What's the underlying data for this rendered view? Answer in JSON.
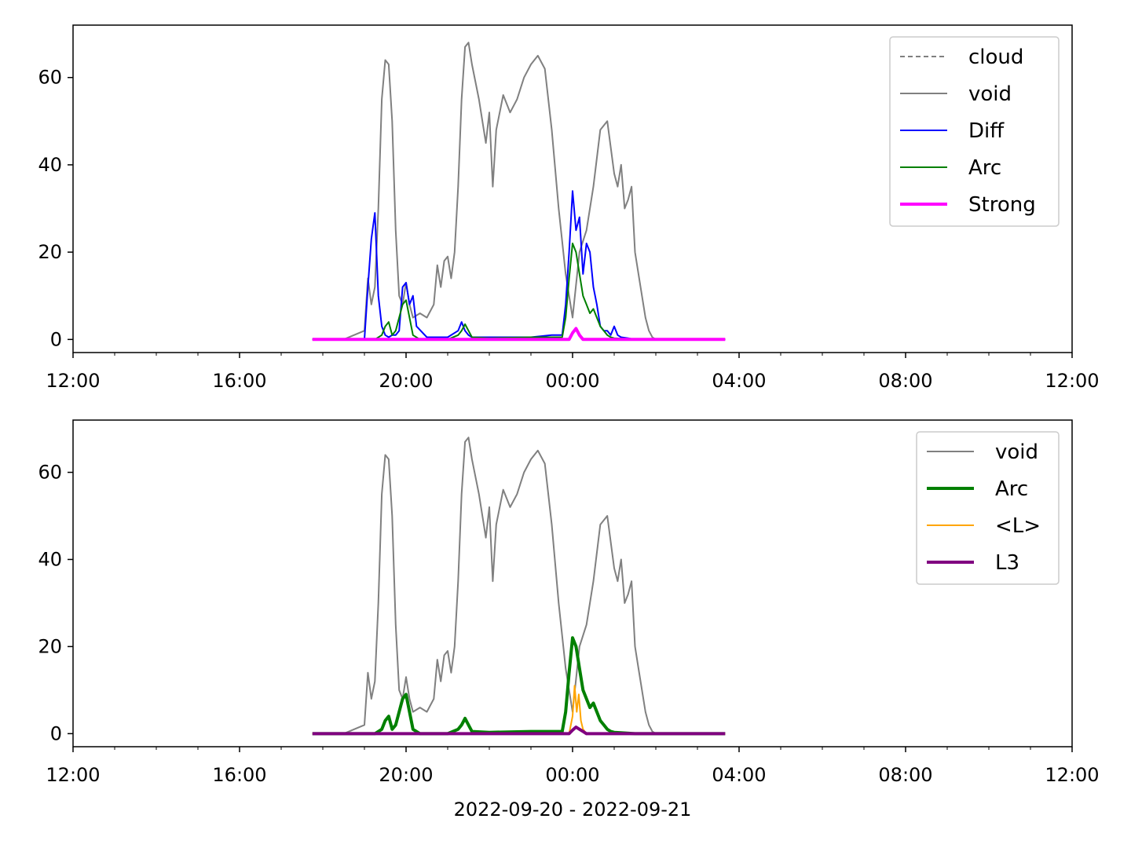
{
  "chart_data": [
    {
      "type": "line",
      "xlim": [
        "2022-09-20 12:00",
        "2022-09-21 12:00"
      ],
      "ylim": [
        -3,
        72
      ],
      "x_ticks": [
        "12:00",
        "16:00",
        "20:00",
        "00:00",
        "04:00",
        "08:00",
        "12:00"
      ],
      "y_ticks": [
        0,
        20,
        40,
        60
      ],
      "legend": {
        "placement": "top-right",
        "entries": [
          "cloud",
          "void",
          "Diff",
          "Arc",
          "Strong"
        ]
      },
      "series": [
        {
          "name": "cloud",
          "color": "#808080",
          "style": "dashed",
          "x": [],
          "y": []
        },
        {
          "name": "void",
          "color": "#808080",
          "style": "solid",
          "x": [
            "17:45",
            "18:30",
            "19:00",
            "19:05",
            "19:10",
            "19:15",
            "19:20",
            "19:25",
            "19:30",
            "19:35",
            "19:40",
            "19:45",
            "19:50",
            "19:55",
            "20:00",
            "20:05",
            "20:10",
            "20:20",
            "20:30",
            "20:40",
            "20:45",
            "20:50",
            "20:55",
            "21:00",
            "21:05",
            "21:10",
            "21:15",
            "21:20",
            "21:25",
            "21:30",
            "21:35",
            "21:45",
            "21:50",
            "21:55",
            "22:00",
            "22:05",
            "22:10",
            "22:20",
            "22:30",
            "22:40",
            "22:50",
            "23:00",
            "23:10",
            "23:20",
            "23:30",
            "23:40",
            "23:50",
            "00:00",
            "00:10",
            "00:20",
            "00:30",
            "00:40",
            "00:50",
            "01:00",
            "01:05",
            "01:10",
            "01:15",
            "01:20",
            "01:25",
            "01:30",
            "01:35",
            "01:45",
            "01:50",
            "01:55",
            "02:00",
            "02:05",
            "02:15",
            "03:40"
          ],
          "y": [
            0,
            0,
            2,
            14,
            8,
            12,
            30,
            55,
            64,
            63,
            50,
            25,
            10,
            8,
            13,
            8,
            5,
            6,
            5,
            8,
            17,
            12,
            18,
            19,
            14,
            20,
            35,
            55,
            67,
            68,
            63,
            55,
            50,
            45,
            52,
            35,
            48,
            56,
            52,
            55,
            60,
            63,
            65,
            62,
            48,
            30,
            15,
            5,
            20,
            25,
            35,
            48,
            50,
            38,
            35,
            40,
            30,
            32,
            35,
            20,
            15,
            5,
            2,
            0.5,
            0,
            0,
            0,
            0
          ]
        },
        {
          "name": "Diff",
          "color": "#0000ff",
          "style": "solid",
          "x": [
            "17:45",
            "19:00",
            "19:05",
            "19:10",
            "19:15",
            "19:20",
            "19:25",
            "19:30",
            "19:35",
            "19:40",
            "19:45",
            "19:50",
            "19:55",
            "20:00",
            "20:05",
            "20:10",
            "20:15",
            "20:30",
            "21:00",
            "21:15",
            "21:20",
            "21:25",
            "21:30",
            "21:35",
            "22:00",
            "22:30",
            "23:00",
            "23:30",
            "23:45",
            "23:50",
            "23:55",
            "00:00",
            "00:05",
            "00:10",
            "00:15",
            "00:20",
            "00:25",
            "00:30",
            "00:35",
            "00:40",
            "00:45",
            "00:50",
            "00:55",
            "01:00",
            "01:05",
            "01:10",
            "01:20",
            "01:30",
            "03:40"
          ],
          "y": [
            0,
            0,
            12,
            23,
            29,
            10,
            3,
            1,
            0.5,
            1,
            1,
            2,
            12,
            13,
            8,
            10,
            3,
            0.5,
            0.5,
            2,
            4,
            2,
            1,
            0.5,
            0.5,
            0.5,
            0.5,
            1,
            1,
            8,
            20,
            34,
            25,
            28,
            15,
            22,
            20,
            12,
            8,
            3,
            2,
            2,
            1,
            3,
            1,
            0.5,
            0.3,
            0,
            0
          ]
        },
        {
          "name": "Arc",
          "color": "#008000",
          "style": "solid",
          "x": [
            "17:45",
            "19:15",
            "19:25",
            "19:30",
            "19:35",
            "19:40",
            "19:45",
            "19:50",
            "19:55",
            "20:00",
            "20:05",
            "20:10",
            "20:20",
            "21:00",
            "21:15",
            "21:20",
            "21:25",
            "21:30",
            "21:35",
            "22:00",
            "23:00",
            "23:45",
            "23:50",
            "23:55",
            "00:00",
            "00:05",
            "00:10",
            "00:15",
            "00:20",
            "00:25",
            "00:30",
            "00:35",
            "00:40",
            "00:45",
            "00:50",
            "00:55",
            "01:00",
            "01:10",
            "01:30",
            "03:40"
          ],
          "y": [
            0,
            0,
            1,
            3,
            4,
            1,
            2,
            5,
            8,
            9,
            5,
            1,
            0,
            0,
            1,
            2,
            3.5,
            2,
            0.5,
            0.3,
            0.5,
            0.5,
            5,
            14,
            22,
            20,
            15,
            10,
            8,
            6,
            7,
            5,
            3,
            2,
            1,
            0.5,
            0.3,
            0.2,
            0,
            0
          ]
        },
        {
          "name": "Strong",
          "color": "#ff00ff",
          "style": "solid",
          "x": [
            "17:45",
            "23:55",
            "00:00",
            "00:05",
            "00:10",
            "00:15",
            "03:40"
          ],
          "y": [
            0,
            0,
            1.5,
            2.5,
            1,
            0,
            0
          ]
        }
      ]
    },
    {
      "type": "line",
      "xlim": [
        "2022-09-20 12:00",
        "2022-09-21 12:00"
      ],
      "ylim": [
        -3,
        72
      ],
      "x_ticks": [
        "12:00",
        "16:00",
        "20:00",
        "00:00",
        "04:00",
        "08:00",
        "12:00"
      ],
      "y_ticks": [
        0,
        20,
        40,
        60
      ],
      "xlabel": "2022-09-20 - 2022-09-21",
      "legend": {
        "placement": "top-right",
        "entries": [
          "void",
          "Arc",
          "<L>",
          "L3"
        ]
      },
      "series": [
        {
          "name": "void",
          "color": "#808080",
          "style": "solid",
          "x": [
            "17:45",
            "18:30",
            "19:00",
            "19:05",
            "19:10",
            "19:15",
            "19:20",
            "19:25",
            "19:30",
            "19:35",
            "19:40",
            "19:45",
            "19:50",
            "19:55",
            "20:00",
            "20:05",
            "20:10",
            "20:20",
            "20:30",
            "20:40",
            "20:45",
            "20:50",
            "20:55",
            "21:00",
            "21:05",
            "21:10",
            "21:15",
            "21:20",
            "21:25",
            "21:30",
            "21:35",
            "21:45",
            "21:50",
            "21:55",
            "22:00",
            "22:05",
            "22:10",
            "22:20",
            "22:30",
            "22:40",
            "22:50",
            "23:00",
            "23:10",
            "23:20",
            "23:30",
            "23:40",
            "23:50",
            "00:00",
            "00:10",
            "00:20",
            "00:30",
            "00:40",
            "00:50",
            "01:00",
            "01:05",
            "01:10",
            "01:15",
            "01:20",
            "01:25",
            "01:30",
            "01:35",
            "01:45",
            "01:50",
            "01:55",
            "02:00",
            "02:05",
            "02:15",
            "03:40"
          ],
          "y": [
            0,
            0,
            2,
            14,
            8,
            12,
            30,
            55,
            64,
            63,
            50,
            25,
            10,
            8,
            13,
            8,
            5,
            6,
            5,
            8,
            17,
            12,
            18,
            19,
            14,
            20,
            35,
            55,
            67,
            68,
            63,
            55,
            50,
            45,
            52,
            35,
            48,
            56,
            52,
            55,
            60,
            63,
            65,
            62,
            48,
            30,
            15,
            5,
            20,
            25,
            35,
            48,
            50,
            38,
            35,
            40,
            30,
            32,
            35,
            20,
            15,
            5,
            2,
            0.5,
            0,
            0,
            0,
            0
          ]
        },
        {
          "name": "Arc",
          "color": "#008000",
          "style": "solid",
          "x": [
            "17:45",
            "19:15",
            "19:25",
            "19:30",
            "19:35",
            "19:40",
            "19:45",
            "19:50",
            "19:55",
            "20:00",
            "20:05",
            "20:10",
            "20:20",
            "21:00",
            "21:15",
            "21:20",
            "21:25",
            "21:30",
            "21:35",
            "22:00",
            "23:00",
            "23:45",
            "23:50",
            "23:55",
            "00:00",
            "00:05",
            "00:10",
            "00:15",
            "00:20",
            "00:25",
            "00:30",
            "00:35",
            "00:40",
            "00:45",
            "00:50",
            "00:55",
            "01:00",
            "01:10",
            "01:30",
            "03:40"
          ],
          "y": [
            0,
            0,
            1,
            3,
            4,
            1,
            2,
            5,
            8,
            9,
            5,
            1,
            0,
            0,
            1,
            2,
            3.5,
            2,
            0.5,
            0.3,
            0.5,
            0.5,
            5,
            14,
            22,
            20,
            15,
            10,
            8,
            6,
            7,
            5,
            3,
            2,
            1,
            0.5,
            0.3,
            0.2,
            0,
            0
          ]
        },
        {
          "name": "<L>",
          "color": "#ffa500",
          "style": "solid",
          "x": [
            "17:45",
            "23:55",
            "00:00",
            "00:03",
            "00:06",
            "00:09",
            "00:12",
            "00:15",
            "00:20",
            "03:40"
          ],
          "y": [
            0,
            0,
            4,
            11,
            5,
            9,
            3,
            1,
            0,
            0
          ]
        },
        {
          "name": "L3",
          "color": "#800080",
          "style": "solid",
          "x": [
            "17:45",
            "23:55",
            "00:00",
            "00:05",
            "00:10",
            "00:15",
            "00:20",
            "03:40"
          ],
          "y": [
            0,
            0,
            0.8,
            1.5,
            1,
            0.5,
            0,
            0
          ]
        }
      ]
    }
  ]
}
